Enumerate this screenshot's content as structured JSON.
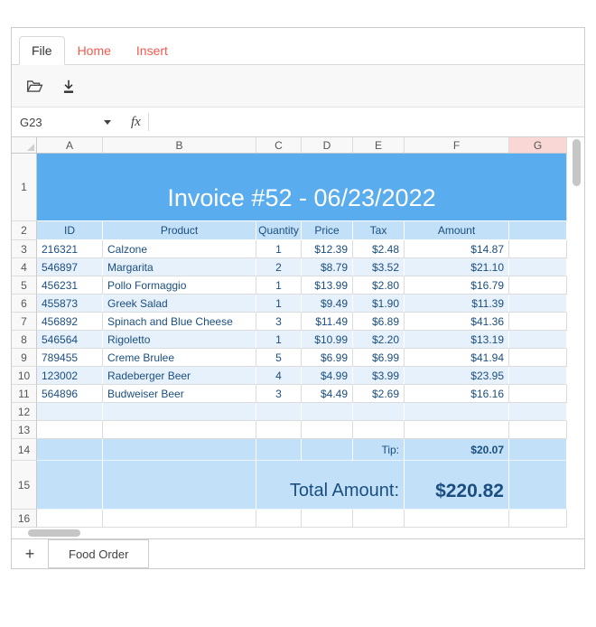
{
  "ribbon": {
    "tabs": [
      {
        "label": "File",
        "active": true
      },
      {
        "label": "Home",
        "active": false
      },
      {
        "label": "Insert",
        "active": false
      }
    ]
  },
  "toolbar": {
    "icons": [
      "folder-open-icon",
      "download-icon"
    ]
  },
  "formula_bar": {
    "cell_reference": "G23",
    "fx_label": "fx",
    "formula_value": ""
  },
  "sheet": {
    "column_headers": [
      "A",
      "B",
      "C",
      "D",
      "E",
      "F",
      "G"
    ],
    "highlighted_column": "G",
    "row_headers": [
      1,
      2,
      3,
      4,
      5,
      6,
      7,
      8,
      9,
      10,
      11,
      12,
      13,
      14,
      15,
      16
    ],
    "title": "Invoice #52 - 06/23/2022",
    "table": {
      "headers": [
        "ID",
        "Product",
        "Quantity",
        "Price",
        "Tax",
        "Amount"
      ],
      "rows": [
        [
          "216321",
          "Calzone",
          "1",
          "$12.39",
          "$2.48",
          "$14.87"
        ],
        [
          "546897",
          "Margarita",
          "2",
          "$8.79",
          "$3.52",
          "$21.10"
        ],
        [
          "456231",
          "Pollo Formaggio",
          "1",
          "$13.99",
          "$2.80",
          "$16.79"
        ],
        [
          "455873",
          "Greek Salad",
          "1",
          "$9.49",
          "$1.90",
          "$11.39"
        ],
        [
          "456892",
          "Spinach and Blue Cheese",
          "3",
          "$11.49",
          "$6.89",
          "$41.36"
        ],
        [
          "546564",
          "Rigoletto",
          "1",
          "$10.99",
          "$2.20",
          "$13.19"
        ],
        [
          "789455",
          "Creme Brulee",
          "5",
          "$6.99",
          "$6.99",
          "$41.94"
        ],
        [
          "123002",
          "Radeberger Beer",
          "4",
          "$4.99",
          "$3.99",
          "$23.95"
        ],
        [
          "564896",
          "Budweiser Beer",
          "3",
          "$4.49",
          "$2.69",
          "$16.16"
        ]
      ]
    },
    "tip_label": "Tip:",
    "tip_value": "$20.07",
    "total_label": "Total Amount:",
    "total_value": "$220.82"
  },
  "sheet_bar": {
    "add_button": "+",
    "active_sheet": "Food Order"
  },
  "colors": {
    "title_bg": "#59aced",
    "band_bg": "#c2e0f8",
    "stripe_bg": "#e6f1fb",
    "navy_text": "#1b4e80",
    "tab_red": "#f4594e",
    "selected_header_bg": "#f8d7d4"
  }
}
